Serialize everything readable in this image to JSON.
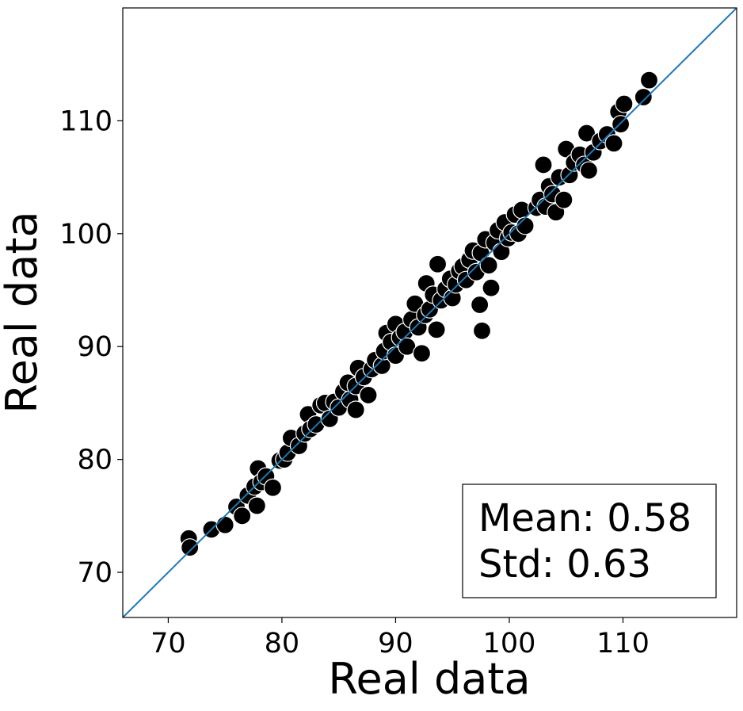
{
  "chart_data": {
    "type": "scatter",
    "title": "",
    "xlabel": "Real data",
    "ylabel": "Real data",
    "xlim": [
      66,
      120
    ],
    "ylim": [
      66,
      120
    ],
    "xticks": [
      70,
      80,
      90,
      100,
      110
    ],
    "yticks": [
      70,
      80,
      90,
      100,
      110
    ],
    "grid": false,
    "reference_line": {
      "type": "identity",
      "color": "#1f77b4"
    },
    "marker": {
      "fill": "#000000",
      "edge": "#ffffff"
    },
    "stats_box": {
      "location": "lower-right",
      "mean_text": "Mean: 0.58",
      "std_text": "Std: 0.63"
    },
    "points": [
      [
        71.8,
        73.0
      ],
      [
        71.9,
        72.2
      ],
      [
        73.8,
        73.8
      ],
      [
        75.0,
        74.2
      ],
      [
        76.0,
        75.8
      ],
      [
        76.5,
        75.0
      ],
      [
        77.0,
        76.8
      ],
      [
        77.6,
        77.6
      ],
      [
        77.9,
        79.2
      ],
      [
        77.8,
        75.9
      ],
      [
        78.2,
        78.0
      ],
      [
        78.6,
        78.5
      ],
      [
        79.2,
        77.5
      ],
      [
        79.8,
        79.9
      ],
      [
        80.2,
        80.0
      ],
      [
        80.5,
        80.6
      ],
      [
        80.8,
        81.9
      ],
      [
        81.5,
        81.2
      ],
      [
        82.0,
        82.3
      ],
      [
        82.3,
        84.0
      ],
      [
        82.5,
        82.7
      ],
      [
        83.0,
        83.1
      ],
      [
        83.4,
        84.8
      ],
      [
        83.8,
        85.0
      ],
      [
        84.2,
        83.6
      ],
      [
        84.6,
        85.1
      ],
      [
        85.0,
        84.6
      ],
      [
        85.4,
        86.0
      ],
      [
        85.8,
        86.8
      ],
      [
        86.0,
        85.3
      ],
      [
        86.5,
        86.5
      ],
      [
        86.5,
        84.4
      ],
      [
        86.7,
        88.1
      ],
      [
        87.2,
        87.3
      ],
      [
        87.6,
        85.7
      ],
      [
        87.9,
        88.0
      ],
      [
        88.2,
        88.8
      ],
      [
        88.8,
        88.3
      ],
      [
        89.0,
        89.6
      ],
      [
        89.2,
        91.2
      ],
      [
        89.6,
        90.4
      ],
      [
        90.0,
        89.2
      ],
      [
        90.0,
        92.0
      ],
      [
        90.4,
        90.8
      ],
      [
        90.8,
        91.3
      ],
      [
        91.0,
        90.0
      ],
      [
        91.4,
        92.4
      ],
      [
        91.7,
        93.8
      ],
      [
        92.0,
        91.7
      ],
      [
        92.3,
        89.4
      ],
      [
        92.6,
        92.8
      ],
      [
        92.7,
        95.6
      ],
      [
        93.0,
        93.3
      ],
      [
        93.3,
        94.6
      ],
      [
        93.6,
        91.5
      ],
      [
        93.7,
        97.3
      ],
      [
        94.0,
        94.1
      ],
      [
        94.4,
        95.1
      ],
      [
        94.8,
        96.0
      ],
      [
        95.0,
        94.3
      ],
      [
        95.3,
        95.5
      ],
      [
        95.6,
        96.7
      ],
      [
        95.9,
        97.1
      ],
      [
        96.2,
        95.9
      ],
      [
        96.5,
        97.7
      ],
      [
        96.8,
        98.5
      ],
      [
        97.1,
        96.6
      ],
      [
        97.4,
        93.7
      ],
      [
        97.6,
        91.4
      ],
      [
        97.5,
        98.3
      ],
      [
        97.9,
        99.5
      ],
      [
        98.2,
        97.2
      ],
      [
        98.4,
        95.2
      ],
      [
        98.7,
        99.2
      ],
      [
        99.0,
        100.3
      ],
      [
        99.3,
        98.4
      ],
      [
        99.6,
        101.0
      ],
      [
        99.9,
        99.6
      ],
      [
        100.2,
        100.1
      ],
      [
        100.5,
        101.7
      ],
      [
        100.8,
        100.0
      ],
      [
        101.1,
        102.1
      ],
      [
        101.4,
        100.7
      ],
      [
        102.4,
        102.3
      ],
      [
        102.7,
        103.0
      ],
      [
        103.0,
        106.1
      ],
      [
        103.2,
        102.4
      ],
      [
        103.5,
        104.2
      ],
      [
        103.8,
        103.5
      ],
      [
        104.1,
        101.9
      ],
      [
        104.4,
        105.0
      ],
      [
        104.8,
        103.0
      ],
      [
        105.0,
        107.5
      ],
      [
        105.3,
        105.2
      ],
      [
        105.7,
        106.3
      ],
      [
        106.2,
        107.0
      ],
      [
        106.6,
        106.1
      ],
      [
        106.8,
        108.9
      ],
      [
        107.0,
        105.6
      ],
      [
        107.4,
        107.2
      ],
      [
        108.0,
        108.2
      ],
      [
        108.6,
        108.8
      ],
      [
        109.2,
        108.0
      ],
      [
        109.6,
        110.8
      ],
      [
        109.8,
        109.7
      ],
      [
        110.1,
        111.5
      ],
      [
        111.8,
        112.1
      ],
      [
        112.3,
        113.6
      ]
    ]
  }
}
